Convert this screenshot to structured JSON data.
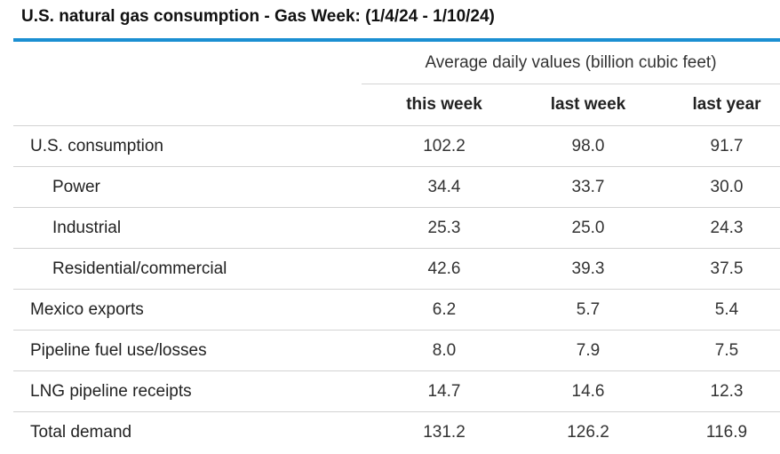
{
  "title": "U.S. natural gas consumption - Gas Week: (1/4/24 - 1/10/24)",
  "table": {
    "group_header": "Average daily values (billion cubic feet)",
    "columns": [
      "this week",
      "last week",
      "last year"
    ],
    "rows": [
      {
        "label": "U.S. consumption",
        "indent": false,
        "values": [
          "102.2",
          "98.0",
          "91.7"
        ]
      },
      {
        "label": "Power",
        "indent": true,
        "values": [
          "34.4",
          "33.7",
          "30.0"
        ]
      },
      {
        "label": "Industrial",
        "indent": true,
        "values": [
          "25.3",
          "25.0",
          "24.3"
        ]
      },
      {
        "label": "Residential/commercial",
        "indent": true,
        "values": [
          "42.6",
          "39.3",
          "37.5"
        ]
      },
      {
        "label": "Mexico exports",
        "indent": false,
        "values": [
          "6.2",
          "5.7",
          "5.4"
        ]
      },
      {
        "label": "Pipeline fuel use/losses",
        "indent": false,
        "values": [
          "8.0",
          "7.9",
          "7.5"
        ]
      },
      {
        "label": "LNG pipeline receipts",
        "indent": false,
        "values": [
          "14.7",
          "14.6",
          "12.3"
        ]
      },
      {
        "label": "Total demand",
        "indent": false,
        "values": [
          "131.2",
          "126.2",
          "116.9"
        ]
      }
    ]
  },
  "colors": {
    "accent_rule": "#1b8fd2",
    "divider": "#d3d3d3"
  }
}
